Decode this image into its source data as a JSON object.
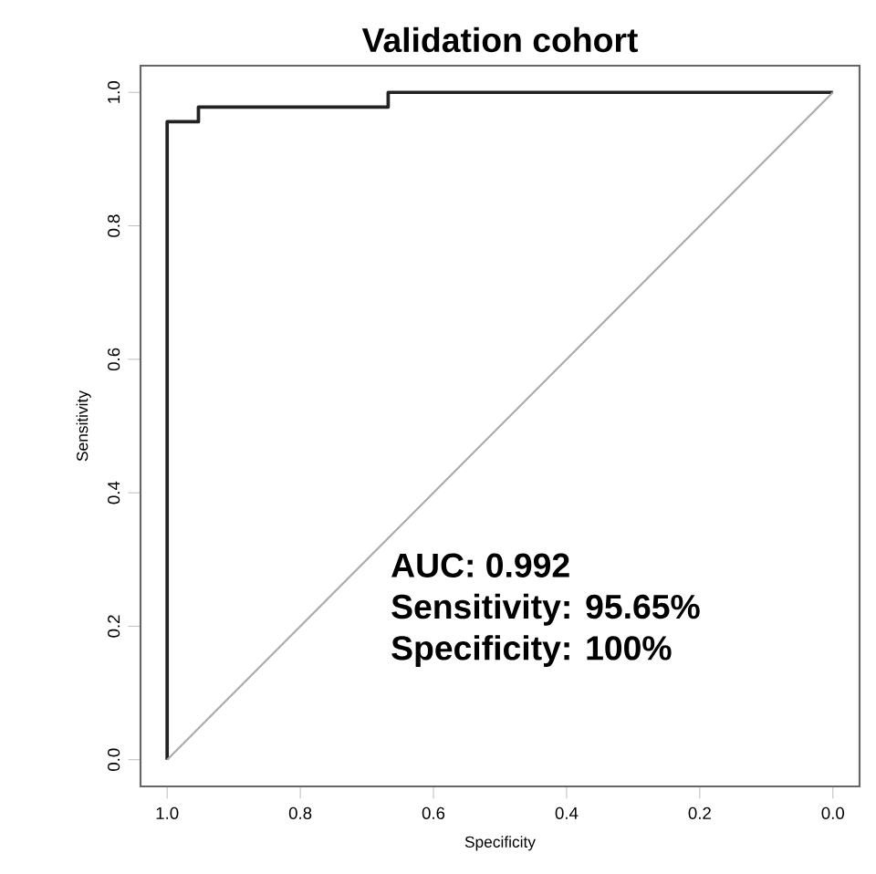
{
  "chart_data": {
    "type": "step",
    "title": "Validation cohort",
    "xlabel": "Specificity",
    "ylabel": "Sensitivity",
    "series": [
      {
        "color": "#222222",
        "x": [
          1.0,
          1.0,
          0.953,
          0.953,
          0.668,
          0.668,
          0.0
        ],
        "values": [
          0.0,
          0.956,
          0.956,
          0.978,
          0.978,
          1.0,
          1.0
        ]
      },
      {
        "type": "line",
        "color": "#aaaaaa",
        "x": [
          1.0,
          0.0
        ],
        "values": [
          0.0,
          1.0
        ]
      }
    ],
    "xlim": [
      1.04,
      -0.04
    ],
    "ylim": [
      -0.04,
      1.04
    ],
    "xticks": [
      {
        "value": 1.0,
        "label": "1.0"
      },
      {
        "value": 0.8,
        "label": "0.8"
      },
      {
        "value": 0.6,
        "label": "0.6"
      },
      {
        "value": 0.4,
        "label": "0.4"
      },
      {
        "value": 0.2,
        "label": "0.2"
      },
      {
        "value": 0.0,
        "label": "0.0"
      }
    ],
    "yticks": [
      {
        "value": 0.0,
        "label": "0.0"
      },
      {
        "value": 0.2,
        "label": "0.2"
      },
      {
        "value": 0.4,
        "label": "0.4"
      },
      {
        "value": 0.6,
        "label": "0.6"
      },
      {
        "value": 0.8,
        "label": "0.8"
      },
      {
        "value": 1.0,
        "label": "1.0"
      }
    ],
    "grid": false,
    "annotations": [
      "AUC: 0.992",
      "Sensitivity: 95.65%",
      "Specificity: 100%"
    ]
  }
}
